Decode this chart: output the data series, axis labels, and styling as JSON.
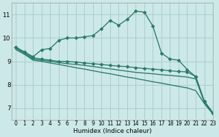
{
  "xlabel": "Humidex (Indice chaleur)",
  "background_color": "#cce8e8",
  "grid_color": "#aacccc",
  "line_color": "#2a7a6a",
  "xlim": [
    -0.5,
    23
  ],
  "ylim": [
    6.5,
    11.5
  ],
  "yticks": [
    7,
    8,
    9,
    10,
    11
  ],
  "xticks": [
    0,
    1,
    2,
    3,
    4,
    5,
    6,
    7,
    8,
    9,
    10,
    11,
    12,
    13,
    14,
    15,
    16,
    17,
    18,
    19,
    20,
    21,
    22,
    23
  ],
  "series": [
    {
      "x": [
        0,
        1,
        2,
        3,
        4,
        5,
        6,
        7,
        8,
        9,
        10,
        11,
        12,
        13,
        14,
        15,
        16,
        17,
        18,
        19,
        20,
        21,
        22,
        23
      ],
      "y": [
        9.6,
        9.4,
        9.2,
        9.5,
        9.55,
        9.9,
        10.0,
        10.0,
        10.05,
        10.1,
        10.4,
        10.75,
        10.55,
        10.8,
        11.15,
        11.1,
        10.5,
        9.35,
        9.1,
        9.05,
        8.65,
        8.35,
        7.3,
        6.8
      ],
      "marker": "D",
      "markersize": 2.5,
      "linewidth": 1.0
    },
    {
      "x": [
        0,
        1,
        2,
        3,
        4,
        5,
        6,
        7,
        8,
        9,
        10,
        11,
        12,
        13,
        14,
        15,
        16,
        17,
        18,
        19,
        20,
        21,
        22,
        23
      ],
      "y": [
        9.6,
        9.4,
        9.15,
        9.1,
        9.05,
        9.0,
        9.0,
        8.97,
        8.93,
        8.9,
        8.87,
        8.83,
        8.8,
        8.77,
        8.73,
        8.7,
        8.67,
        8.64,
        8.6,
        8.57,
        8.55,
        8.35,
        7.3,
        6.8
      ],
      "marker": "D",
      "markersize": 2.5,
      "linewidth": 1.0
    },
    {
      "x": [
        0,
        1,
        2,
        3,
        4,
        5,
        6,
        7,
        8,
        9,
        10,
        11,
        12,
        13,
        14,
        15,
        16,
        17,
        18,
        19,
        20,
        21,
        22,
        23
      ],
      "y": [
        9.55,
        9.35,
        9.1,
        9.05,
        9.0,
        8.95,
        8.9,
        8.87,
        8.83,
        8.78,
        8.73,
        8.68,
        8.63,
        8.58,
        8.53,
        8.5,
        8.47,
        8.43,
        8.4,
        8.37,
        8.33,
        8.25,
        7.25,
        6.78
      ],
      "marker": null,
      "markersize": 0,
      "linewidth": 1.0
    },
    {
      "x": [
        0,
        1,
        2,
        3,
        4,
        5,
        6,
        7,
        8,
        9,
        10,
        11,
        12,
        13,
        14,
        15,
        16,
        17,
        18,
        19,
        20,
        21,
        22,
        23
      ],
      "y": [
        9.5,
        9.3,
        9.05,
        9.0,
        8.93,
        8.87,
        8.8,
        8.73,
        8.67,
        8.6,
        8.53,
        8.47,
        8.4,
        8.33,
        8.27,
        8.2,
        8.13,
        8.07,
        8.0,
        7.93,
        7.87,
        7.75,
        7.2,
        6.75
      ],
      "marker": null,
      "markersize": 0,
      "linewidth": 1.0
    }
  ]
}
